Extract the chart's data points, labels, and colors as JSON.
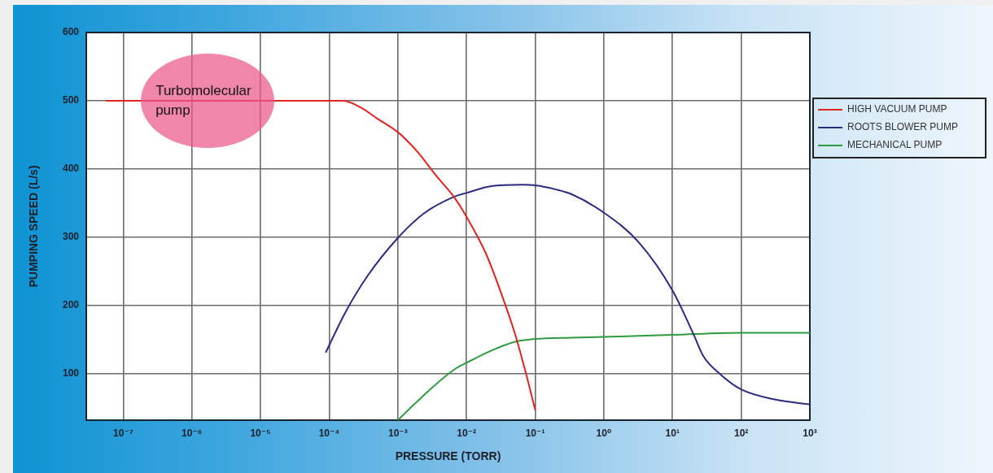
{
  "chart_data": {
    "type": "line",
    "xlabel": "PRESSURE (TORR)",
    "ylabel": "PUMPING SPEED (L/s)",
    "log": "x",
    "xlim": [
      2.9e-08,
      1000
    ],
    "xticks": [
      {
        "value": 1e-07,
        "label": "10⁻⁷"
      },
      {
        "value": 1e-06,
        "label": "10⁻⁶"
      },
      {
        "value": 1e-05,
        "label": "10⁻⁵"
      },
      {
        "value": 0.0001,
        "label": "10⁻⁴"
      },
      {
        "value": 0.001,
        "label": "10⁻³"
      },
      {
        "value": 0.01,
        "label": "10⁻²"
      },
      {
        "value": 0.1,
        "label": "10⁻¹"
      },
      {
        "value": 1,
        "label": "10⁰"
      },
      {
        "value": 10,
        "label": "10¹"
      },
      {
        "value": 100,
        "label": "10²"
      },
      {
        "value": 1000,
        "label": "10³"
      }
    ],
    "ylim": [
      32,
      600
    ],
    "yticks": [
      100,
      200,
      300,
      400,
      500,
      600
    ],
    "grid": true,
    "legend": "top right",
    "marker": "none",
    "series": [
      {
        "name": "HIGH VACUUM PUMP",
        "color": "#e02424",
        "x": [
          5.6e-08,
          0.00016,
          0.00029,
          0.0005,
          0.001,
          0.0019,
          0.0037,
          0.0068,
          0.01,
          0.019,
          0.032,
          0.051,
          0.071,
          0.1
        ],
        "values": [
          500,
          500,
          490,
          474,
          454,
          426,
          389,
          357,
          330,
          277,
          218,
          158,
          106,
          47
        ]
      },
      {
        "name": "ROOTS BLOWER PUMP",
        "color": "#2b2b80",
        "x": [
          8.9e-05,
          0.00017,
          0.00036,
          0.001,
          0.0024,
          0.0068,
          0.01,
          0.023,
          0.065,
          0.1,
          0.2,
          0.34,
          1,
          3.2,
          10,
          20,
          28,
          50,
          100,
          320,
          1000
        ],
        "values": [
          131,
          189,
          243,
          299,
          335,
          360,
          365,
          375,
          377,
          376,
          370,
          363,
          336,
          293,
          222,
          159,
          126,
          99,
          77,
          62,
          55
        ]
      },
      {
        "name": "MECHANICAL PUMP",
        "color": "#2f9a40",
        "x": [
          0.001,
          0.0028,
          0.0068,
          0.01,
          0.023,
          0.051,
          0.1,
          0.34,
          1,
          10,
          100,
          1000
        ],
        "values": [
          32,
          75,
          107,
          116,
          134,
          147,
          151,
          153,
          154,
          157,
          160,
          160
        ]
      }
    ],
    "annotations": [
      {
        "text": "Turbomolecular pump",
        "x": 1.7e-06,
        "y": 500
      }
    ]
  }
}
